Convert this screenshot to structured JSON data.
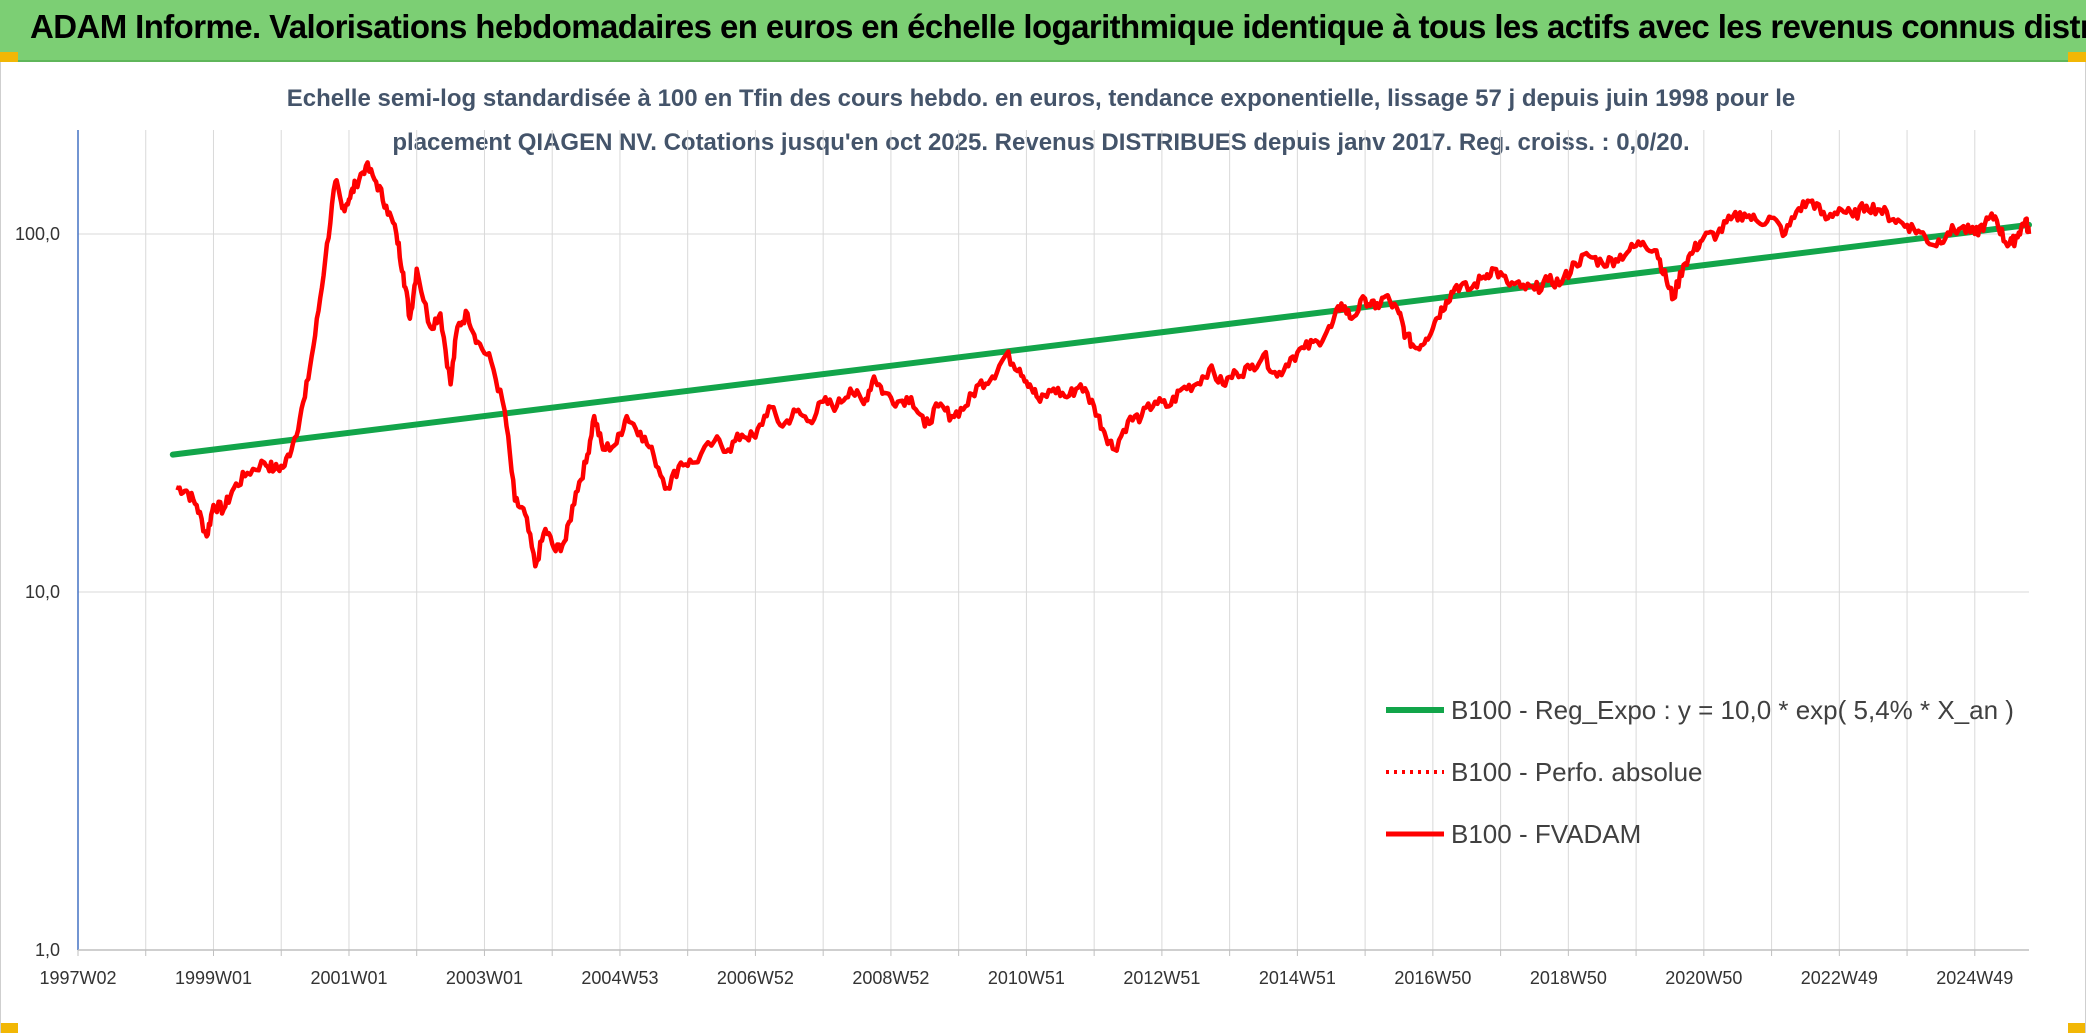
{
  "banner": {
    "title": "ADAM Informe. Valorisations hebdomadaires en euros en échelle logarithmique identique à tous les actifs avec les revenus connus distribués"
  },
  "colors": {
    "banner": "#7ccf74",
    "fvadam": "#ff0000",
    "regression": "#12a54a",
    "perf_absolue": "#ff0000",
    "axis": "#4472c4",
    "grid": "#d9d9d9",
    "subtitle": "#44546a"
  },
  "chart_data": {
    "type": "line",
    "subtitle_lines": [
      "Echelle semi-log standardisée à 100 en Tfin des cours hebdo. en euros, tendance exponentielle, lissage 57 j depuis juin 1998 pour le",
      "placement QIAGEN NV. Cotations jusqu'en oct 2025. Revenus DISTRIBUES depuis janv 2017. Reg. croiss. : 0,0/20."
    ],
    "y_scale": "log",
    "y_ticks": [
      {
        "value": 1,
        "label": "1,0"
      },
      {
        "value": 10,
        "label": "10,0"
      },
      {
        "value": 100,
        "label": "100,0"
      }
    ],
    "x_ticks": [
      {
        "value": 1997.0,
        "label": "1997W02"
      },
      {
        "value": 1999.0,
        "label": "1999W01"
      },
      {
        "value": 2001.0,
        "label": "2001W01"
      },
      {
        "value": 2003.0,
        "label": "2003W01"
      },
      {
        "value": 2005.0,
        "label": "2004W53"
      },
      {
        "value": 2007.0,
        "label": "2006W52"
      },
      {
        "value": 2009.0,
        "label": "2008W52"
      },
      {
        "value": 2011.0,
        "label": "2010W51"
      },
      {
        "value": 2013.0,
        "label": "2012W51"
      },
      {
        "value": 2015.0,
        "label": "2014W51"
      },
      {
        "value": 2017.0,
        "label": "2016W50"
      },
      {
        "value": 2019.0,
        "label": "2018W50"
      },
      {
        "value": 2021.0,
        "label": "2020W50"
      },
      {
        "value": 2023.0,
        "label": "2022W49"
      },
      {
        "value": 2025.0,
        "label": "2024W49"
      }
    ],
    "xlim": [
      1997.0,
      2025.8
    ],
    "ylim": [
      1,
      200
    ],
    "grid": "vertical every year, horizontal at 1, 10, 100",
    "legend_position": "bottom-right",
    "series": [
      {
        "name": "B100 - Reg_Expo : y = 10,0 * exp( 5,4% *  X_an )",
        "style": "solid-thick",
        "points": [
          [
            1998.4,
            24.2
          ],
          [
            2025.8,
            106
          ]
        ]
      },
      {
        "name": "B100 - Perfo. absolue",
        "style": "dotted",
        "points": []
      },
      {
        "name": "B100 - FVADAM",
        "style": "solid",
        "points": [
          [
            1998.45,
            19.6
          ],
          [
            1998.6,
            19.2
          ],
          [
            1998.75,
            17.5
          ],
          [
            1998.9,
            14.3
          ],
          [
            1999.0,
            17.5
          ],
          [
            1999.15,
            17.0
          ],
          [
            1999.3,
            19.5
          ],
          [
            1999.5,
            21.5
          ],
          [
            1999.75,
            23.0
          ],
          [
            1999.9,
            22.0
          ],
          [
            2000.05,
            22.5
          ],
          [
            2000.2,
            27.0
          ],
          [
            2000.35,
            35.0
          ],
          [
            2000.5,
            52.0
          ],
          [
            2000.65,
            85.0
          ],
          [
            2000.8,
            140.0
          ],
          [
            2000.9,
            118.0
          ],
          [
            2001.0,
            125.0
          ],
          [
            2001.1,
            138.0
          ],
          [
            2001.25,
            155.0
          ],
          [
            2001.4,
            140.0
          ],
          [
            2001.55,
            120.0
          ],
          [
            2001.7,
            100.0
          ],
          [
            2001.8,
            78.0
          ],
          [
            2001.9,
            58.0
          ],
          [
            2002.0,
            80.0
          ],
          [
            2002.2,
            55.0
          ],
          [
            2002.35,
            60.0
          ],
          [
            2002.5,
            38.0
          ],
          [
            2002.6,
            55.0
          ],
          [
            2002.75,
            60.0
          ],
          [
            2002.9,
            50.0
          ],
          [
            2003.1,
            44.0
          ],
          [
            2003.3,
            32.0
          ],
          [
            2003.45,
            18.0
          ],
          [
            2003.6,
            16.5
          ],
          [
            2003.75,
            11.8
          ],
          [
            2003.9,
            15.0
          ],
          [
            2004.05,
            13.0
          ],
          [
            2004.2,
            14.0
          ],
          [
            2004.35,
            19.0
          ],
          [
            2004.5,
            23.0
          ],
          [
            2004.62,
            31.0
          ],
          [
            2004.75,
            25.0
          ],
          [
            2004.95,
            26.0
          ],
          [
            2005.1,
            31.0
          ],
          [
            2005.3,
            28.0
          ],
          [
            2005.5,
            24.0
          ],
          [
            2005.7,
            19.5
          ],
          [
            2005.9,
            23.0
          ],
          [
            2006.1,
            23.0
          ],
          [
            2006.4,
            26.5
          ],
          [
            2006.6,
            25.0
          ],
          [
            2006.8,
            27.5
          ],
          [
            2007.0,
            27.0
          ],
          [
            2007.2,
            33.0
          ],
          [
            2007.4,
            29.0
          ],
          [
            2007.6,
            32.0
          ],
          [
            2007.8,
            30.0
          ],
          [
            2008.0,
            34.0
          ],
          [
            2008.2,
            33.0
          ],
          [
            2008.4,
            37.0
          ],
          [
            2008.6,
            33.5
          ],
          [
            2008.75,
            40.0
          ],
          [
            2008.9,
            36.0
          ],
          [
            2009.1,
            34.0
          ],
          [
            2009.3,
            35.0
          ],
          [
            2009.5,
            29.0
          ],
          [
            2009.7,
            33.0
          ],
          [
            2009.9,
            31.0
          ],
          [
            2010.1,
            33.0
          ],
          [
            2010.3,
            38.0
          ],
          [
            2010.5,
            40.0
          ],
          [
            2010.7,
            46.0
          ],
          [
            2010.9,
            42.0
          ],
          [
            2011.05,
            38.0
          ],
          [
            2011.2,
            34.0
          ],
          [
            2011.4,
            37.0
          ],
          [
            2011.6,
            35.0
          ],
          [
            2011.8,
            38.0
          ],
          [
            2012.0,
            33.0
          ],
          [
            2012.15,
            28.0
          ],
          [
            2012.3,
            25.0
          ],
          [
            2012.5,
            30.0
          ],
          [
            2012.7,
            31.0
          ],
          [
            2012.9,
            34.0
          ],
          [
            2013.1,
            33.0
          ],
          [
            2013.3,
            37.0
          ],
          [
            2013.5,
            38.0
          ],
          [
            2013.7,
            42.0
          ],
          [
            2013.9,
            38.0
          ],
          [
            2014.1,
            41.0
          ],
          [
            2014.3,
            42.0
          ],
          [
            2014.5,
            46.0
          ],
          [
            2014.7,
            40.0
          ],
          [
            2014.9,
            45.0
          ],
          [
            2015.1,
            48.0
          ],
          [
            2015.3,
            50.0
          ],
          [
            2015.5,
            55.0
          ],
          [
            2015.65,
            64.0
          ],
          [
            2015.8,
            58.0
          ],
          [
            2016.0,
            66.0
          ],
          [
            2016.15,
            62.0
          ],
          [
            2016.3,
            67.0
          ],
          [
            2016.5,
            60.0
          ],
          [
            2016.6,
            52.0
          ],
          [
            2016.75,
            48.0
          ],
          [
            2016.9,
            51.0
          ],
          [
            2017.05,
            58.0
          ],
          [
            2017.2,
            65.0
          ],
          [
            2017.35,
            72.0
          ],
          [
            2017.55,
            70.0
          ],
          [
            2017.75,
            76.0
          ],
          [
            2017.9,
            80.0
          ],
          [
            2018.1,
            73.0
          ],
          [
            2018.3,
            71.0
          ],
          [
            2018.5,
            70.0
          ],
          [
            2018.7,
            74.0
          ],
          [
            2018.9,
            73.0
          ],
          [
            2019.1,
            83.0
          ],
          [
            2019.3,
            87.0
          ],
          [
            2019.5,
            83.0
          ],
          [
            2019.7,
            85.0
          ],
          [
            2019.9,
            90.0
          ],
          [
            2020.1,
            95.0
          ],
          [
            2020.3,
            90.0
          ],
          [
            2020.45,
            74.0
          ],
          [
            2020.55,
            66.0
          ],
          [
            2020.7,
            82.0
          ],
          [
            2020.85,
            90.0
          ],
          [
            2021.0,
            98.0
          ],
          [
            2021.2,
            100.0
          ],
          [
            2021.4,
            110.0
          ],
          [
            2021.6,
            114.0
          ],
          [
            2021.8,
            108.0
          ],
          [
            2022.0,
            111.0
          ],
          [
            2022.2,
            100.0
          ],
          [
            2022.4,
            118.0
          ],
          [
            2022.6,
            124.0
          ],
          [
            2022.8,
            110.0
          ],
          [
            2023.0,
            118.0
          ],
          [
            2023.2,
            112.0
          ],
          [
            2023.4,
            120.0
          ],
          [
            2023.6,
            117.0
          ],
          [
            2023.8,
            110.0
          ],
          [
            2024.0,
            106.0
          ],
          [
            2024.2,
            101.0
          ],
          [
            2024.4,
            93.0
          ],
          [
            2024.6,
            101.0
          ],
          [
            2024.8,
            104.0
          ],
          [
            2025.0,
            100.0
          ],
          [
            2025.15,
            107.0
          ],
          [
            2025.3,
            112.0
          ],
          [
            2025.45,
            95.0
          ],
          [
            2025.55,
            94.0
          ],
          [
            2025.65,
            101.0
          ],
          [
            2025.75,
            110.0
          ],
          [
            2025.8,
            100.0
          ]
        ]
      }
    ]
  }
}
